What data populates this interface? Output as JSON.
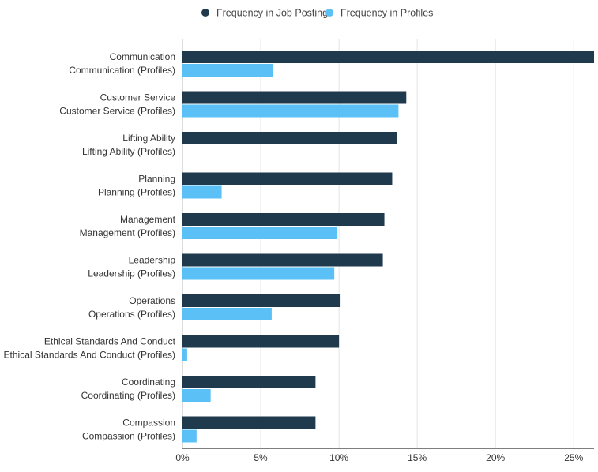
{
  "chart_data": {
    "type": "bar",
    "orientation": "horizontal",
    "legend": {
      "position": "top-center",
      "items": [
        {
          "name": "Frequency in Job Postings",
          "color": "#1f3a4d"
        },
        {
          "name": "Frequency in Profiles",
          "color": "#5bc0f5"
        }
      ]
    },
    "categories": [
      {
        "label1": "Communication",
        "label2": "Communication (Profiles)"
      },
      {
        "label1": "Customer Service",
        "label2": "Customer Service (Profiles)"
      },
      {
        "label1": "Lifting Ability",
        "label2": "Lifting Ability (Profiles)"
      },
      {
        "label1": "Planning",
        "label2": "Planning (Profiles)"
      },
      {
        "label1": "Management",
        "label2": "Management (Profiles)"
      },
      {
        "label1": "Leadership",
        "label2": "Leadership (Profiles)"
      },
      {
        "label1": "Operations",
        "label2": "Operations (Profiles)"
      },
      {
        "label1": "Ethical Standards And Conduct",
        "label2": "Ethical Standards And Conduct (Profiles)"
      },
      {
        "label1": "Coordinating",
        "label2": "Coordinating (Profiles)"
      },
      {
        "label1": "Compassion",
        "label2": "Compassion (Profiles)"
      }
    ],
    "series": [
      {
        "name": "Frequency in Job Postings",
        "values": [
          26.3,
          14.3,
          13.7,
          13.4,
          12.9,
          12.8,
          10.1,
          10.0,
          8.5,
          8.5
        ]
      },
      {
        "name": "Frequency in Profiles",
        "values": [
          5.8,
          13.8,
          0.0,
          2.5,
          9.9,
          9.7,
          5.7,
          0.3,
          1.8,
          0.9
        ]
      }
    ],
    "xlim": [
      0,
      26.3
    ],
    "xticks": [
      0,
      5,
      10,
      15,
      20,
      25
    ],
    "xtick_labels": [
      "0%",
      "5%",
      "10%",
      "15%",
      "20%",
      "25%"
    ],
    "grid": true
  }
}
